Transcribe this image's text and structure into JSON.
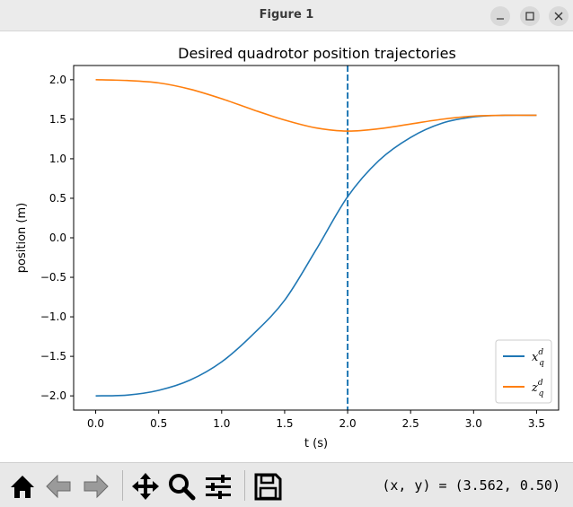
{
  "window": {
    "title": "Figure 1",
    "controls": [
      "minimize",
      "maximize",
      "close"
    ]
  },
  "toolbar": {
    "buttons": [
      "home-icon",
      "back-arrow-icon",
      "forward-arrow-icon",
      "pan-icon",
      "zoom-icon",
      "configure-subplots-icon",
      "save-icon"
    ],
    "coords": "(x, y) = (3.562, 0.50)"
  },
  "chart_data": {
    "type": "line",
    "title": "Desired quadrotor position trajectories",
    "xlabel": "t (s)",
    "ylabel": "position (m)",
    "xlim": [
      -0.175,
      3.675
    ],
    "ylim": [
      -2.18,
      2.18
    ],
    "xticks": [
      "0.0",
      "0.5",
      "1.0",
      "1.5",
      "2.0",
      "2.5",
      "3.0",
      "3.5"
    ],
    "yticks": [
      "−2.0",
      "−1.5",
      "−1.0",
      "−0.5",
      "0.0",
      "0.5",
      "1.0",
      "1.5",
      "2.0"
    ],
    "vline": {
      "x": 2.0,
      "style": "dashed",
      "color": "#1f77b4"
    },
    "legend_position": "lower-right",
    "series": [
      {
        "name": "x",
        "name_sup": "d",
        "name_sub": "q",
        "color": "#1f77b4",
        "x": [
          0.0,
          0.25,
          0.5,
          0.75,
          1.0,
          1.25,
          1.5,
          1.75,
          2.0,
          2.25,
          2.5,
          2.75,
          3.0,
          3.25,
          3.5
        ],
        "y": [
          -2.0,
          -1.99,
          -1.93,
          -1.8,
          -1.57,
          -1.22,
          -0.79,
          -0.15,
          0.52,
          0.98,
          1.27,
          1.45,
          1.53,
          1.55,
          1.55
        ]
      },
      {
        "name": "z",
        "name_sup": "d",
        "name_sub": "q",
        "color": "#ff7f0e",
        "x": [
          0.0,
          0.25,
          0.5,
          0.75,
          1.0,
          1.25,
          1.5,
          1.75,
          2.0,
          2.25,
          2.5,
          2.75,
          3.0,
          3.25,
          3.5
        ],
        "y": [
          2.0,
          1.99,
          1.96,
          1.88,
          1.76,
          1.62,
          1.49,
          1.39,
          1.35,
          1.38,
          1.44,
          1.5,
          1.54,
          1.55,
          1.55
        ]
      }
    ]
  }
}
